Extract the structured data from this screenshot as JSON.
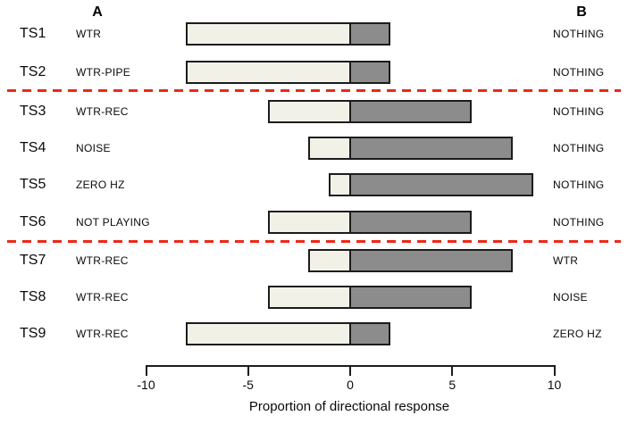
{
  "columns": {
    "a_header": "A",
    "b_header": "B"
  },
  "chart_data": {
    "type": "bar",
    "subtype": "horizontal-diverging-stacked",
    "title": "",
    "xlabel": "Proportion of directional response",
    "ylabel": "",
    "xlim": [
      -10,
      10
    ],
    "x_ticks": [
      -10,
      -5,
      0,
      5,
      10
    ],
    "grid": false,
    "legend": {
      "shown": false
    },
    "series_meaning": {
      "toward_a": "light bar extending left of zero (response toward stimulus A)",
      "toward_b": "dark bar extending right of zero (response toward stimulus B)"
    },
    "rows": [
      {
        "id": "TS1",
        "stimulus_a": "WTR",
        "stimulus_b": "NOTHING",
        "toward_a": 8,
        "toward_b": 2
      },
      {
        "id": "TS2",
        "stimulus_a": "WTR-PIPE",
        "stimulus_b": "NOTHING",
        "toward_a": 8,
        "toward_b": 2
      },
      {
        "id": "TS3",
        "stimulus_a": "WTR-REC",
        "stimulus_b": "NOTHING",
        "toward_a": 4,
        "toward_b": 6
      },
      {
        "id": "TS4",
        "stimulus_a": "NOISE",
        "stimulus_b": "NOTHING",
        "toward_a": 2,
        "toward_b": 8
      },
      {
        "id": "TS5",
        "stimulus_a": "ZERO HZ",
        "stimulus_b": "NOTHING",
        "toward_a": 1,
        "toward_b": 9
      },
      {
        "id": "TS6",
        "stimulus_a": "NOT PLAYING",
        "stimulus_b": "NOTHING",
        "toward_a": 4,
        "toward_b": 6
      },
      {
        "id": "TS7",
        "stimulus_a": "WTR-REC",
        "stimulus_b": "WTR",
        "toward_a": 2,
        "toward_b": 8
      },
      {
        "id": "TS8",
        "stimulus_a": "WTR-REC",
        "stimulus_b": "NOISE",
        "toward_a": 4,
        "toward_b": 6
      },
      {
        "id": "TS9",
        "stimulus_a": "WTR-REC",
        "stimulus_b": "ZERO HZ",
        "toward_a": 8,
        "toward_b": 2
      }
    ],
    "dividers_after": [
      "TS2",
      "TS6"
    ],
    "colors": {
      "bar_toward_a": "#f2f1e8",
      "bar_toward_b": "#8c8c8c",
      "bar_border": "#1c1c1c",
      "divider_red": "#ed2817",
      "background": "#ffffff"
    }
  }
}
